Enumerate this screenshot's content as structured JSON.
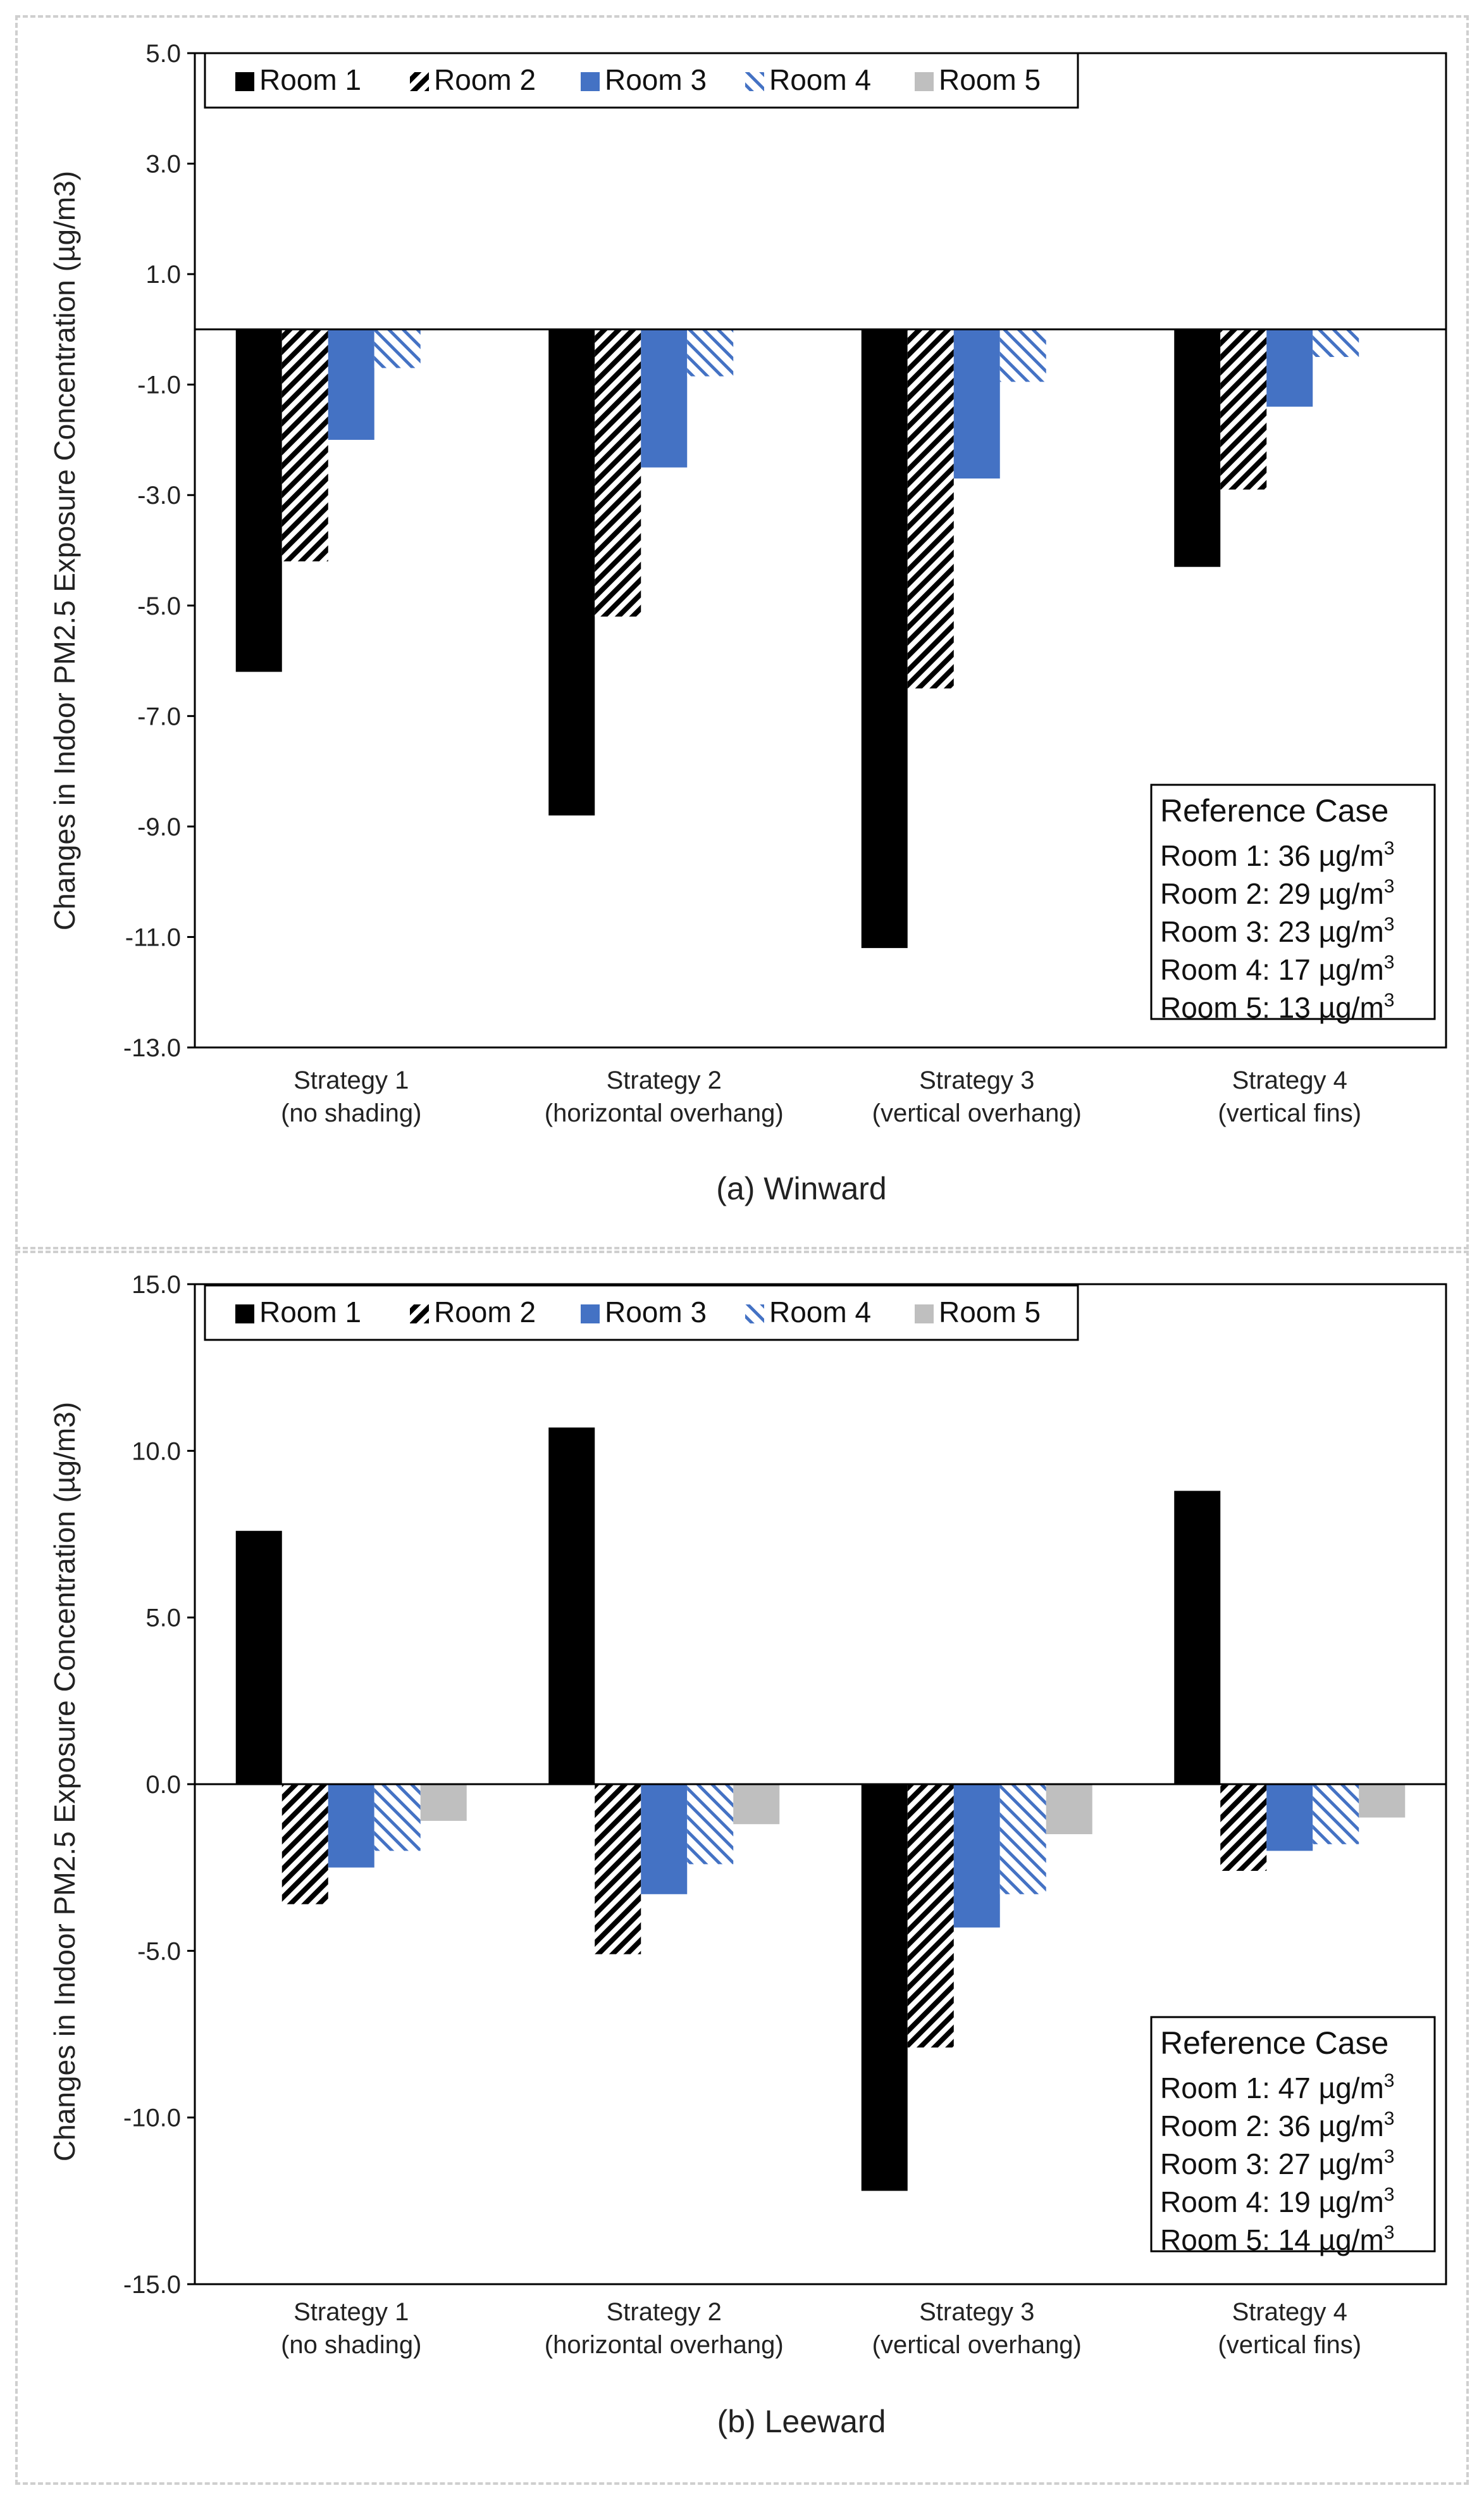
{
  "chart_data": [
    {
      "type": "bar",
      "title": "(a) Winward",
      "ylabel": "Changes in Indoor PM2.5 Exposure Concentration (µg/m3)",
      "ylim": [
        -13,
        5
      ],
      "yticks": [
        5,
        3,
        1,
        -1,
        -3,
        -5,
        -7,
        -9,
        -11,
        -13
      ],
      "ytick_labels": [
        "5.0",
        "3.0",
        "1.0",
        "-1.0",
        "-3.0",
        "-5.0",
        "-7.0",
        "-9.0",
        "-11.0",
        "-13.0"
      ],
      "categories": [
        [
          "Strategy 1",
          "(no shading)"
        ],
        [
          "Strategy 2",
          "(horizontal overhang)"
        ],
        [
          "Strategy 3",
          "(vertical overhang)"
        ],
        [
          "Strategy 4",
          "(vertical fins)"
        ]
      ],
      "series": [
        {
          "name": "Room 1",
          "style": "solid",
          "color": "#000000",
          "values": [
            -6.2,
            -8.8,
            -11.2,
            -4.3
          ]
        },
        {
          "name": "Room 2",
          "style": "hatch-dense",
          "color": "#000000",
          "values": [
            -4.2,
            -5.2,
            -6.5,
            -2.9
          ]
        },
        {
          "name": "Room 3",
          "style": "solid",
          "color": "#4472C4",
          "values": [
            -2.0,
            -2.5,
            -2.7,
            -1.4
          ]
        },
        {
          "name": "Room 4",
          "style": "hatch-light",
          "color": "#4472C4",
          "values": [
            -0.7,
            -0.85,
            -0.95,
            -0.5
          ]
        },
        {
          "name": "Room 5",
          "style": "solid",
          "color": "#BFBFBF",
          "values": [
            0,
            0,
            0,
            0
          ]
        }
      ],
      "reference_case": {
        "title": "Reference Case",
        "lines": [
          "Room 1: 36 µg/m",
          "Room 2: 29 µg/m",
          "Room 3: 23 µg/m",
          "Room 4: 17 µg/m",
          "Room 5: 13 µg/m"
        ],
        "superscript": "3"
      }
    },
    {
      "type": "bar",
      "title": "(b) Leeward",
      "ylabel": "Changes in Indoor PM2.5 Exposure Concentration (µg/m3)",
      "ylim": [
        -15,
        15
      ],
      "yticks": [
        15,
        10,
        5,
        0,
        -5,
        -10,
        -15
      ],
      "ytick_labels": [
        "15.0",
        "10.0",
        "5.0",
        "0.0",
        "-5.0",
        "-10.0",
        "-15.0"
      ],
      "categories": [
        [
          "Strategy 1",
          "(no shading)"
        ],
        [
          "Strategy 2",
          "(horizontal overhang)"
        ],
        [
          "Strategy 3",
          "(vertical overhang)"
        ],
        [
          "Strategy 4",
          "(vertical fins)"
        ]
      ],
      "series": [
        {
          "name": "Room 1",
          "style": "solid",
          "color": "#000000",
          "values": [
            7.6,
            10.7,
            -12.2,
            8.8
          ]
        },
        {
          "name": "Room 2",
          "style": "hatch-dense",
          "color": "#000000",
          "values": [
            -3.6,
            -5.1,
            -7.9,
            -2.6
          ]
        },
        {
          "name": "Room 3",
          "style": "solid",
          "color": "#4472C4",
          "values": [
            -2.5,
            -3.3,
            -4.3,
            -2.0
          ]
        },
        {
          "name": "Room 4",
          "style": "hatch-light",
          "color": "#4472C4",
          "values": [
            -2.0,
            -2.4,
            -3.3,
            -1.8
          ]
        },
        {
          "name": "Room 5",
          "style": "solid",
          "color": "#BFBFBF",
          "values": [
            -1.1,
            -1.2,
            -1.5,
            -1.0
          ]
        }
      ],
      "reference_case": {
        "title": "Reference Case",
        "lines": [
          "Room 1: 47 µg/m",
          "Room 2: 36 µg/m",
          "Room 3: 27 µg/m",
          "Room 4: 19 µg/m",
          "Room 5: 14 µg/m"
        ],
        "superscript": "3"
      }
    }
  ]
}
